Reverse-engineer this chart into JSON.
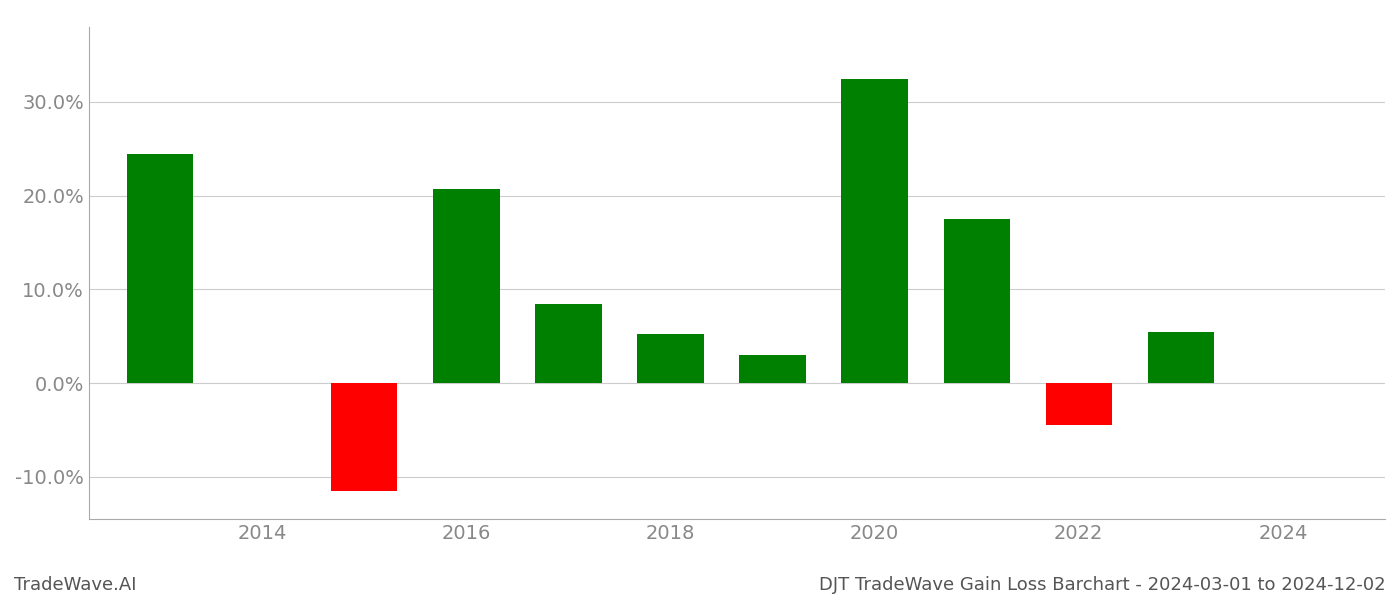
{
  "years": [
    2013,
    2015,
    2016,
    2017,
    2018,
    2019,
    2020,
    2021,
    2022,
    2023
  ],
  "values": [
    0.245,
    -0.115,
    0.207,
    0.085,
    0.053,
    0.03,
    0.325,
    0.175,
    -0.045,
    0.055
  ],
  "positive_color": "#008000",
  "negative_color": "#ff0000",
  "background_color": "#ffffff",
  "grid_color": "#cccccc",
  "title": "DJT TradeWave Gain Loss Barchart - 2024-03-01 to 2024-12-02",
  "watermark": "TradeWave.AI",
  "xlim": [
    2012.3,
    2025.0
  ],
  "ylim": [
    -0.145,
    0.38
  ],
  "yticks": [
    -0.1,
    0.0,
    0.1,
    0.2,
    0.3
  ],
  "xticks": [
    2014,
    2016,
    2018,
    2020,
    2022,
    2024
  ],
  "bar_width": 0.65,
  "title_fontsize": 13,
  "watermark_fontsize": 13,
  "tick_fontsize": 14,
  "tick_color": "#888888"
}
